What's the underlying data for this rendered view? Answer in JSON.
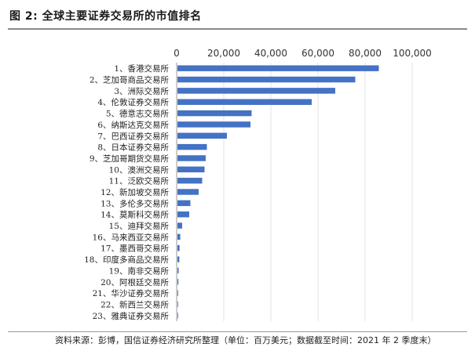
{
  "figure": {
    "title": "图 2:  全球主要证券交易所的市值排名",
    "source_note": "资料来源：彭博，国信证券经济研究所整理（单位：百万美元；数据截至时间：2021 年 2 季度末）"
  },
  "chart_data": {
    "type": "bar",
    "orientation": "horizontal",
    "title": "",
    "xlabel": "",
    "ylabel": "",
    "xlim": [
      0,
      100000
    ],
    "x_ticks": [
      "0",
      "20,000",
      "40,000",
      "60,000",
      "80,000",
      "100,000"
    ],
    "x_tick_values": [
      0,
      20000,
      40000,
      60000,
      80000,
      100000
    ],
    "x_axis_position": "top",
    "grid": true,
    "legend": "none",
    "bar_color": "#4472c4",
    "categories": [
      "1、香港交易所",
      "2、芝加哥商品交易所",
      "3、洲际交易所",
      "4、伦敦证券交易所",
      "5、德意志交易所",
      "6、纳斯达克交易所",
      "7、巴西证券交易所",
      "8、日本证券交易所",
      "9、芝加哥期货交易所",
      "10、澳洲交易所",
      "11、泛欧交易所",
      "12、新加坡交易所",
      "13、多伦多交易所",
      "14、莫斯科交易所",
      "15、迪拜交易所",
      "16、马来西亚交易所",
      "17、墨西哥交易所",
      "18、印度多商品交易所",
      "19、南非交易所",
      "20、阿根廷交易所",
      "21、华沙证券交易所",
      "22、新西兰交易所",
      "23、雅典证券交易所"
    ],
    "values": [
      85500,
      75500,
      67000,
      57000,
      31500,
      31000,
      21000,
      12500,
      12000,
      11500,
      10500,
      9000,
      5500,
      5000,
      2000,
      1200,
      900,
      800,
      500,
      400,
      300,
      250,
      150
    ]
  }
}
